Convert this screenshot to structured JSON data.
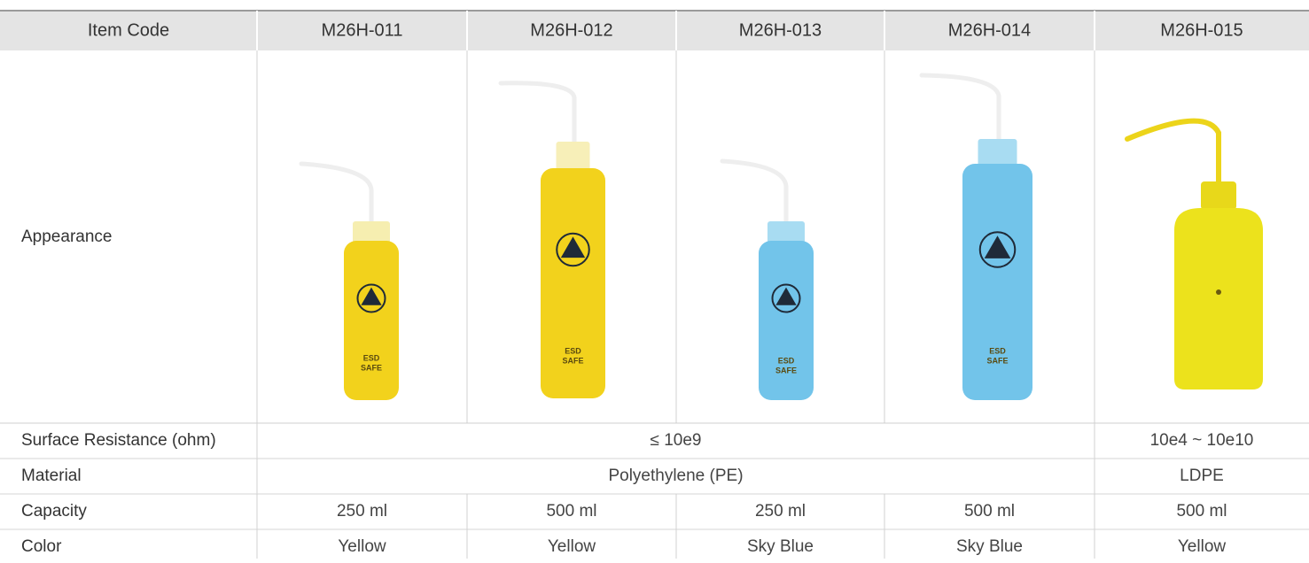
{
  "table": {
    "header": [
      "Item Code",
      "M26H-011",
      "M26H-012",
      "M26H-013",
      "M26H-014",
      "M26H-015"
    ],
    "appearance_label": "Appearance",
    "bottle_label": [
      "ESD",
      "SAFE"
    ],
    "rows": [
      [
        "Surface Resistance (ohm)",
        "≤ 10e9",
        null,
        null,
        null,
        "10e4 ~ 10e10"
      ],
      [
        "Material",
        "Polyethylene (PE)",
        null,
        null,
        null,
        "LDPE"
      ],
      [
        "Capacity",
        "250 ml",
        "500 ml",
        "250 ml",
        "500 ml",
        "500 ml"
      ],
      [
        "Color",
        "Yellow",
        "Yellow",
        "Sky Blue",
        "Sky Blue",
        "Yellow"
      ]
    ]
  }
}
